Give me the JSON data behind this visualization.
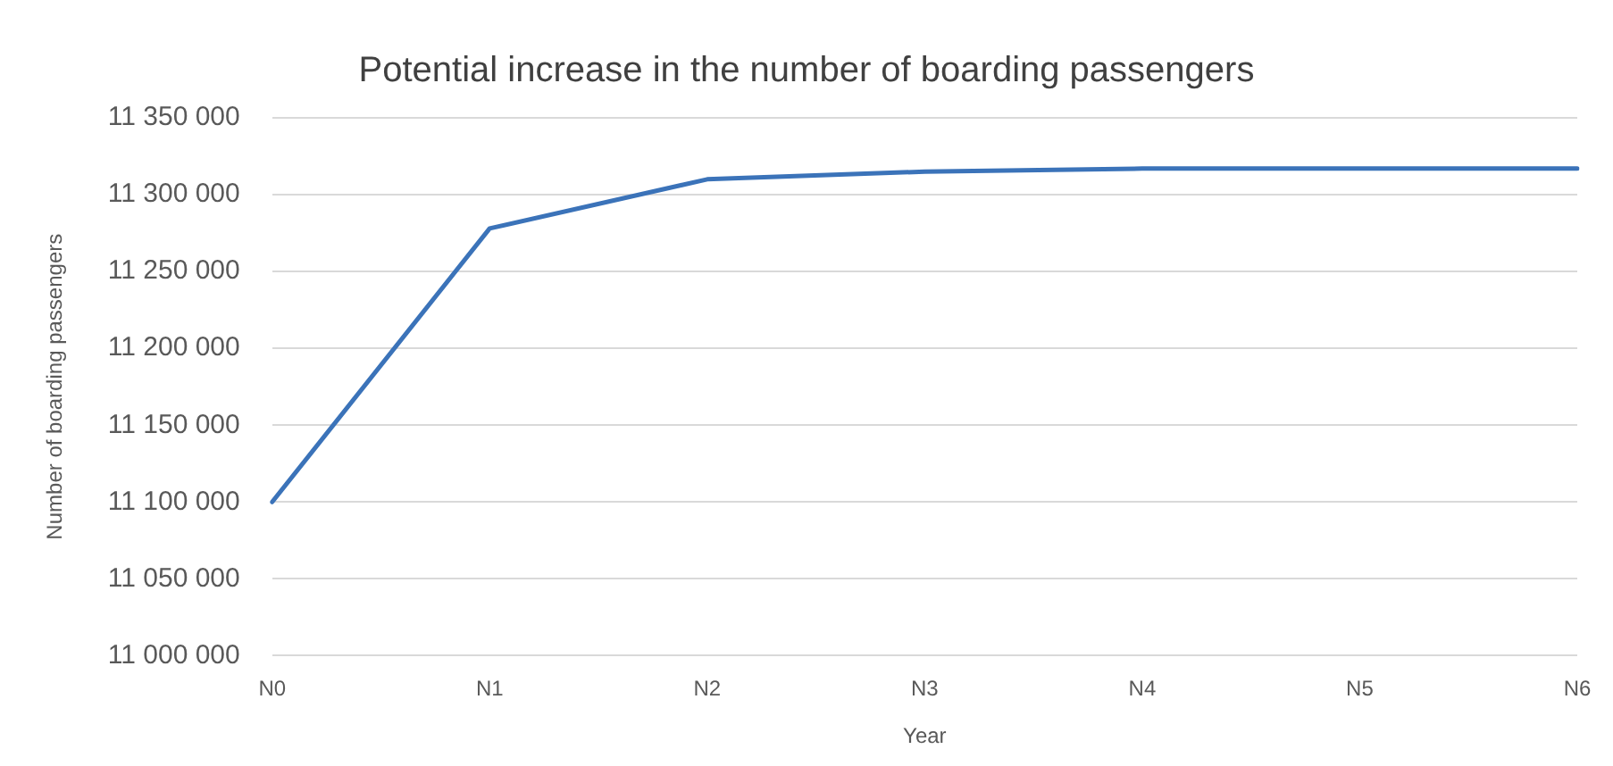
{
  "chart_data": {
    "type": "line",
    "title": "Potential increase in the number of boarding passengers",
    "xlabel": "Year",
    "ylabel": "Number of boarding passengers",
    "categories": [
      "N0",
      "N1",
      "N2",
      "N3",
      "N4",
      "N5",
      "N6"
    ],
    "series": [
      {
        "color": "#3b73b9",
        "values": [
          11100000,
          11278000,
          11310000,
          11315000,
          11317000,
          11317000,
          11317000
        ]
      }
    ],
    "ylim": [
      11000000,
      11350000
    ],
    "yticks": [
      {
        "value": 11000000,
        "label": "11 000 000"
      },
      {
        "value": 11050000,
        "label": "11 050 000"
      },
      {
        "value": 11100000,
        "label": "11 100 000"
      },
      {
        "value": 11150000,
        "label": "11 150 000"
      },
      {
        "value": 11200000,
        "label": "11 200 000"
      },
      {
        "value": 11250000,
        "label": "11 250 000"
      },
      {
        "value": 11300000,
        "label": "11 300 000"
      },
      {
        "value": 11350000,
        "label": "11 350 000"
      }
    ],
    "grid": "y",
    "legend": false,
    "marker": "none",
    "line_style": "solid"
  }
}
